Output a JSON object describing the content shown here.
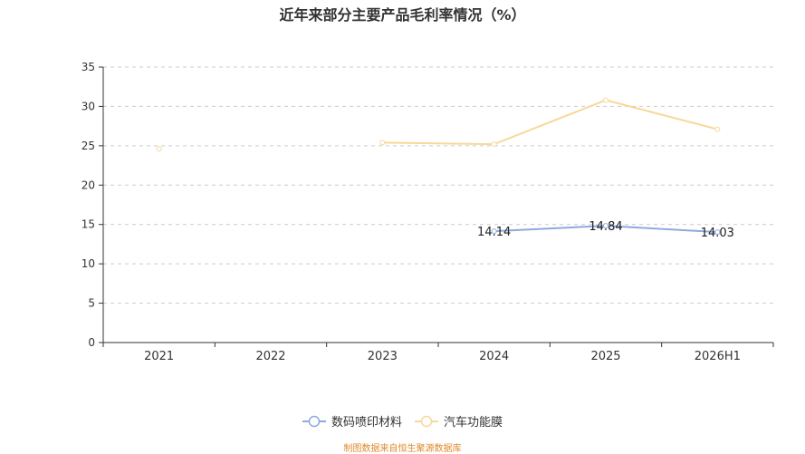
{
  "chart_title": "近年来部分主要产品毛利率情况（%）",
  "source_note": "制图数据来自恒生聚源数据库",
  "chart_data": {
    "type": "line",
    "title": "近年来部分主要产品毛利率情况（%）",
    "xlabel": "",
    "ylabel": "",
    "categories": [
      "2021",
      "2022",
      "2023",
      "2024",
      "2025",
      "2026H1"
    ],
    "ylim": [
      0,
      35
    ],
    "yticks": [
      0,
      5,
      10,
      15,
      20,
      25,
      30,
      35
    ],
    "grid": true,
    "legend_position": "bottom",
    "series": [
      {
        "name": "数码喷印材料",
        "color": "#8fa9de",
        "values": [
          null,
          null,
          null,
          14.14,
          14.84,
          14.03
        ],
        "labels": [
          null,
          null,
          null,
          "14.14",
          "14.84",
          "14.03"
        ]
      },
      {
        "name": "汽车功能膜",
        "color": "#f7d899",
        "values": [
          24.6,
          null,
          25.4,
          25.2,
          30.8,
          27.1
        ],
        "labels": [
          null,
          null,
          null,
          null,
          null,
          null
        ]
      }
    ]
  }
}
